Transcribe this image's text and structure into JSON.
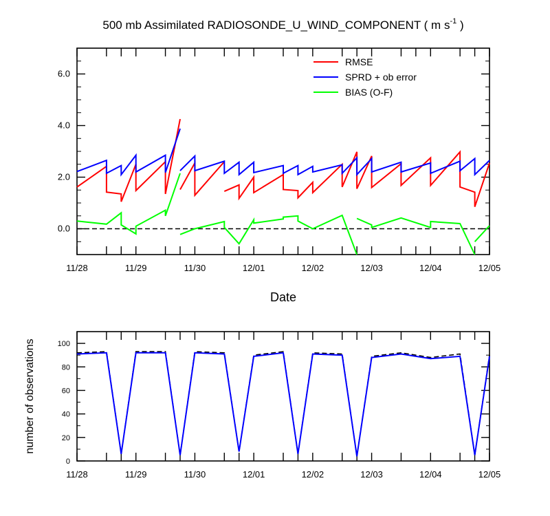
{
  "figure": {
    "title_main": "500 mb Assimilated RADIOSONDE_U_WIND_COMPONENT ( m s",
    "title_sup": "-1",
    "title_end": " )"
  },
  "colors": {
    "rmse": "#ff0000",
    "sprd": "#0000ff",
    "bias": "#00ff00",
    "obs_used": "#0000ff",
    "obs_possible": "#000000"
  },
  "chart_data": [
    {
      "type": "line",
      "xlabel": "Date",
      "ylabel": "",
      "ylim": [
        -1.0,
        7.0
      ],
      "xlim": [
        "11/28 00Z",
        "12/05 00Z"
      ],
      "x_tick_labels": [
        "11/28",
        "11/29",
        "11/30",
        "12/01",
        "12/02",
        "12/03",
        "12/04",
        "12/05"
      ],
      "y_ticks": [
        0.0,
        2.0,
        4.0,
        6.0
      ],
      "y_tick_labels": [
        "0.0",
        "2.0",
        "4.0",
        "6.0"
      ],
      "zero_line": true,
      "legend_position": "top-right",
      "x_hours": [
        0,
        12,
        18,
        24,
        36,
        42,
        48,
        60,
        66,
        72,
        84,
        90,
        96,
        108,
        114,
        120,
        132,
        138,
        144,
        156,
        162,
        168
      ],
      "series": [
        {
          "name": "RMSE",
          "color_key": "rmse",
          "segments": [
            [
              [
                0,
                1.62
              ],
              [
                12,
                2.42
              ],
              [
                12,
                1.42
              ],
              [
                18,
                1.35
              ],
              [
                18,
                1.05
              ],
              [
                24,
                2.5
              ],
              [
                24,
                1.48
              ],
              [
                36,
                2.6
              ],
              [
                36,
                1.35
              ],
              [
                42,
                4.25
              ]
            ],
            [
              [
                42,
                1.52
              ],
              [
                48,
                2.55
              ],
              [
                48,
                1.3
              ],
              [
                60,
                2.6
              ]
            ],
            [
              [
                60,
                1.45
              ],
              [
                66,
                1.7
              ],
              [
                66,
                1.18
              ],
              [
                72,
                2.0
              ],
              [
                72,
                1.4
              ],
              [
                84,
                2.1
              ],
              [
                84,
                1.52
              ],
              [
                90,
                1.48
              ],
              [
                90,
                1.2
              ],
              [
                96,
                1.8
              ],
              [
                96,
                1.4
              ],
              [
                108,
                2.5
              ],
              [
                108,
                1.62
              ],
              [
                114,
                2.98
              ],
              [
                114,
                1.55
              ],
              [
                120,
                2.82
              ],
              [
                120,
                1.6
              ],
              [
                132,
                2.52
              ],
              [
                132,
                1.68
              ],
              [
                144,
                2.75
              ],
              [
                144,
                1.68
              ],
              [
                156,
                2.98
              ],
              [
                156,
                1.62
              ],
              [
                162,
                1.42
              ],
              [
                162,
                0.85
              ],
              [
                168,
                2.55
              ]
            ]
          ]
        },
        {
          "name": "SPRD + ob error",
          "color_key": "sprd",
          "segments": [
            [
              [
                0,
                2.22
              ],
              [
                12,
                2.65
              ],
              [
                12,
                2.15
              ],
              [
                18,
                2.45
              ],
              [
                18,
                2.1
              ],
              [
                24,
                2.85
              ],
              [
                24,
                2.2
              ],
              [
                36,
                2.85
              ],
              [
                36,
                2.18
              ],
              [
                42,
                3.88
              ]
            ],
            [
              [
                42,
                2.25
              ],
              [
                48,
                2.82
              ],
              [
                48,
                2.25
              ],
              [
                60,
                2.62
              ],
              [
                60,
                2.15
              ],
              [
                66,
                2.58
              ],
              [
                66,
                2.1
              ],
              [
                72,
                2.58
              ],
              [
                72,
                2.18
              ],
              [
                84,
                2.45
              ],
              [
                84,
                2.15
              ],
              [
                90,
                2.45
              ],
              [
                90,
                2.1
              ],
              [
                96,
                2.42
              ],
              [
                96,
                2.2
              ],
              [
                108,
                2.48
              ],
              [
                108,
                2.15
              ],
              [
                114,
                2.75
              ],
              [
                114,
                2.1
              ],
              [
                120,
                2.72
              ],
              [
                120,
                2.2
              ],
              [
                132,
                2.58
              ],
              [
                132,
                2.2
              ],
              [
                144,
                2.55
              ],
              [
                144,
                2.15
              ],
              [
                156,
                2.62
              ],
              [
                156,
                2.25
              ],
              [
                162,
                2.72
              ],
              [
                162,
                2.1
              ],
              [
                168,
                2.65
              ]
            ]
          ]
        },
        {
          "name": "BIAS (O-F)",
          "color_key": "bias",
          "segments": [
            [
              [
                0,
                0.3
              ],
              [
                12,
                0.18
              ],
              [
                18,
                0.62
              ],
              [
                18,
                0.15
              ],
              [
                24,
                -0.2
              ],
              [
                24,
                0.1
              ],
              [
                36,
                0.72
              ],
              [
                36,
                0.5
              ],
              [
                42,
                2.15
              ]
            ],
            [
              [
                42,
                -0.22
              ],
              [
                48,
                0.0
              ],
              [
                60,
                0.28
              ],
              [
                60,
                0.05
              ],
              [
                66,
                -0.58
              ],
              [
                72,
                0.35
              ],
              [
                72,
                0.22
              ],
              [
                84,
                0.38
              ],
              [
                84,
                0.45
              ],
              [
                90,
                0.5
              ],
              [
                90,
                0.3
              ],
              [
                96,
                0.0
              ],
              [
                108,
                0.52
              ],
              [
                114,
                -1.0
              ]
            ],
            [
              [
                114,
                0.4
              ],
              [
                120,
                0.15
              ],
              [
                120,
                0.05
              ],
              [
                132,
                0.42
              ],
              [
                144,
                0.05
              ],
              [
                144,
                0.28
              ],
              [
                156,
                0.2
              ],
              [
                162,
                -1.0
              ]
            ],
            [
              [
                162,
                -0.5
              ],
              [
                168,
                0.12
              ]
            ]
          ]
        }
      ]
    },
    {
      "type": "line",
      "ylabel": "number of observations",
      "ylim": [
        0,
        110
      ],
      "xlim": [
        "11/28 00Z",
        "12/05 00Z"
      ],
      "x_tick_labels": [
        "11/28",
        "11/29",
        "11/30",
        "12/01",
        "12/02",
        "12/03",
        "12/04",
        "12/05"
      ],
      "y_ticks": [
        0,
        20,
        40,
        60,
        80,
        100
      ],
      "y_tick_labels": [
        "0",
        "20",
        "40",
        "60",
        "80",
        "100"
      ],
      "x_hours": [
        0,
        12,
        18,
        24,
        36,
        42,
        48,
        60,
        66,
        72,
        84,
        90,
        96,
        108,
        114,
        120,
        132,
        144,
        156,
        162,
        168
      ],
      "series": [
        {
          "name": "",
          "color_key": "obs_possible",
          "dashed": true,
          "points": [
            [
              0,
              92
            ],
            [
              12,
              93
            ],
            [
              18,
              6
            ],
            [
              24,
              93
            ],
            [
              36,
              93
            ],
            [
              42,
              5
            ],
            [
              48,
              93
            ],
            [
              60,
              92
            ],
            [
              66,
              8
            ],
            [
              72,
              90
            ],
            [
              84,
              93
            ],
            [
              90,
              6
            ],
            [
              96,
              92
            ],
            [
              108,
              91
            ],
            [
              114,
              4
            ],
            [
              120,
              89
            ],
            [
              132,
              92
            ],
            [
              144,
              88
            ],
            [
              156,
              91
            ],
            [
              162,
              5
            ],
            [
              168,
              90
            ]
          ]
        },
        {
          "name": "",
          "color_key": "obs_used",
          "dashed": false,
          "points": [
            [
              0,
              91
            ],
            [
              12,
              92
            ],
            [
              18,
              6
            ],
            [
              24,
              92
            ],
            [
              36,
              92
            ],
            [
              42,
              5
            ],
            [
              48,
              92
            ],
            [
              60,
              91
            ],
            [
              66,
              8
            ],
            [
              72,
              89
            ],
            [
              84,
              92
            ],
            [
              90,
              6
            ],
            [
              96,
              91
            ],
            [
              108,
              90
            ],
            [
              114,
              4
            ],
            [
              120,
              88
            ],
            [
              132,
              91
            ],
            [
              144,
              87
            ],
            [
              156,
              89
            ],
            [
              162,
              5
            ],
            [
              168,
              89
            ]
          ]
        }
      ]
    }
  ]
}
